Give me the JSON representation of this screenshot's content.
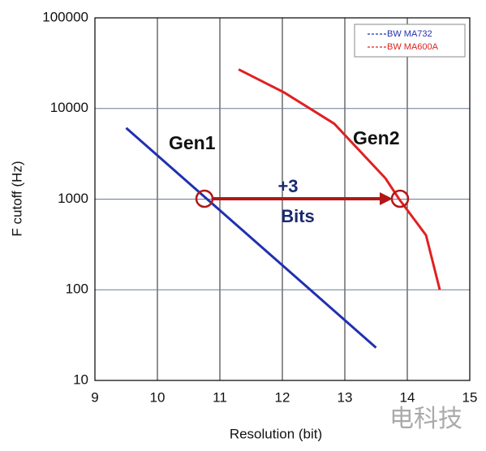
{
  "chart_data": {
    "type": "line",
    "xlabel": "Resolution (bit)",
    "ylabel": "F cutoff (Hz)",
    "xlim": [
      9,
      15
    ],
    "xticks": [
      9,
      10,
      11,
      12,
      13,
      14,
      15
    ],
    "ylim": [
      10,
      100000
    ],
    "yticks": [
      10,
      100,
      1000,
      10000,
      100000
    ],
    "yscale": "log",
    "grid": true,
    "legend": "upper right",
    "series": [
      {
        "name": "BW MA732",
        "color": "#2030b0",
        "x": [
          9.5,
          13.5
        ],
        "values": [
          6100,
          23
        ]
      },
      {
        "name": "BW MA600A",
        "color": "#e02020",
        "x": [
          11.3,
          12.03,
          12.83,
          13.65,
          13.87,
          14.3,
          14.52
        ],
        "values": [
          27000,
          15000,
          6800,
          1700,
          1000,
          400,
          100
        ]
      }
    ],
    "annotations": [
      "Gen1",
      "Gen2",
      "+3",
      "Bits"
    ],
    "watermark": "电科技"
  }
}
